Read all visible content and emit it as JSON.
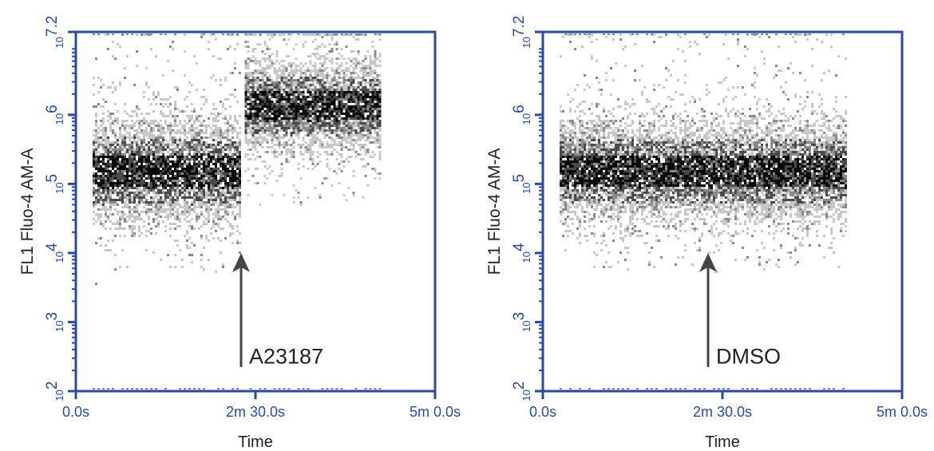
{
  "colors": {
    "axis": "#2a4aa0",
    "tick_text": "#2a4aa0",
    "label_text": "#222222",
    "arrow": "#444444",
    "density_scale": [
      "#c8c8c8",
      "#8a8a8a",
      "#4a4a4a",
      "#0a0a0a"
    ]
  },
  "chart_data": [
    {
      "type": "scatter",
      "xlabel": "Time",
      "ylabel": "FL1 Fluo-4 AM-A",
      "x_tick_labels": [
        "0.0s",
        "2m 30.0s",
        "5m 0.0s"
      ],
      "x_tick_values_s": [
        0,
        150,
        300
      ],
      "xlim_s": [
        0,
        300
      ],
      "y_scale": "log",
      "ylim_log10": [
        2,
        7.2
      ],
      "y_ticks": [
        {
          "base": "10",
          "exp": "2",
          "value_log10": 2
        },
        {
          "base": "10",
          "exp": "3",
          "value_log10": 3
        },
        {
          "base": "10",
          "exp": "4",
          "value_log10": 4
        },
        {
          "base": "10",
          "exp": "5",
          "value_log10": 5
        },
        {
          "base": "10",
          "exp": "6",
          "value_log10": 6
        },
        {
          "base": "10",
          "exp": "7.2",
          "value_log10": 7.2
        }
      ],
      "annotation": {
        "text": "A23187",
        "x_s": 138,
        "arrow_tip_log10": 4.0,
        "arrow_tail_log10": 2.35
      },
      "segments": [
        {
          "x_range_s": [
            14,
            138
          ],
          "center_log10": 5.2,
          "spread_log10": 0.4
        },
        {
          "x_range_s": [
            141,
            255
          ],
          "center_log10": 6.15,
          "spread_log10": 0.35
        }
      ]
    },
    {
      "type": "scatter",
      "xlabel": "Time",
      "ylabel": "FL1 Fluo-4 AM-A",
      "x_tick_labels": [
        "0.0s",
        "2m 30.0s",
        "5m 0.0s"
      ],
      "x_tick_values_s": [
        0,
        150,
        300
      ],
      "xlim_s": [
        0,
        300
      ],
      "y_scale": "log",
      "ylim_log10": [
        2,
        7.2
      ],
      "y_ticks": [
        {
          "base": "10",
          "exp": "2",
          "value_log10": 2
        },
        {
          "base": "10",
          "exp": "3",
          "value_log10": 3
        },
        {
          "base": "10",
          "exp": "4",
          "value_log10": 4
        },
        {
          "base": "10",
          "exp": "5",
          "value_log10": 5
        },
        {
          "base": "10",
          "exp": "6",
          "value_log10": 6
        },
        {
          "base": "10",
          "exp": "7.2",
          "value_log10": 7.2
        }
      ],
      "annotation": {
        "text": "DMSO",
        "x_s": 138,
        "arrow_tip_log10": 4.0,
        "arrow_tail_log10": 2.35
      },
      "segments": [
        {
          "x_range_s": [
            14,
            255
          ],
          "center_log10": 5.2,
          "spread_log10": 0.38
        }
      ]
    }
  ]
}
